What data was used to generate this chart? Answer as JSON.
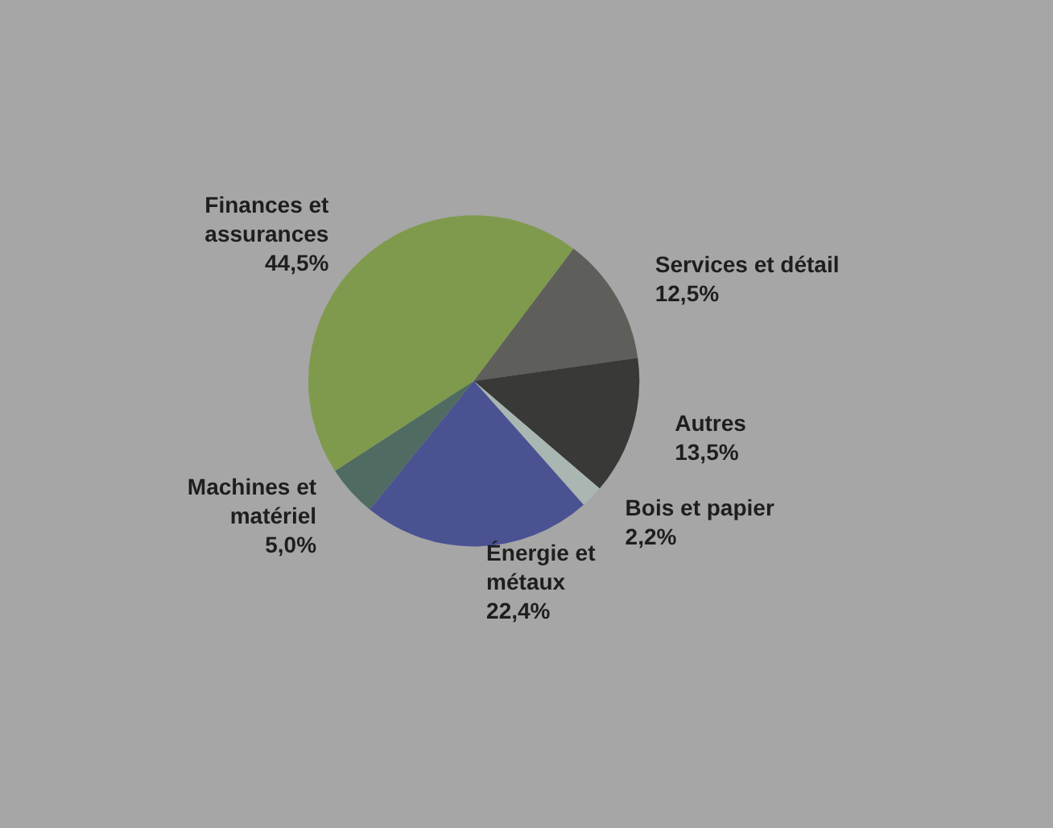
{
  "chart_data": {
    "type": "pie",
    "categories": [
      "Finances et\nassurances",
      "Services et détail",
      "Autres",
      "Bois et papier",
      "Énergie et\nmétaux",
      "Machines et\nmatériel"
    ],
    "values": [
      44.5,
      12.5,
      13.5,
      2.2,
      22.4,
      5.0
    ],
    "value_labels": [
      "44,5%",
      "12,5%",
      "13,5%",
      "2,2%",
      "22,4%",
      "5,0%"
    ],
    "colors": [
      "#7f9a4c",
      "#5e5e5a",
      "#393937",
      "#a9b6b2",
      "#4a5292",
      "#4f6b62"
    ],
    "legend": false
  }
}
